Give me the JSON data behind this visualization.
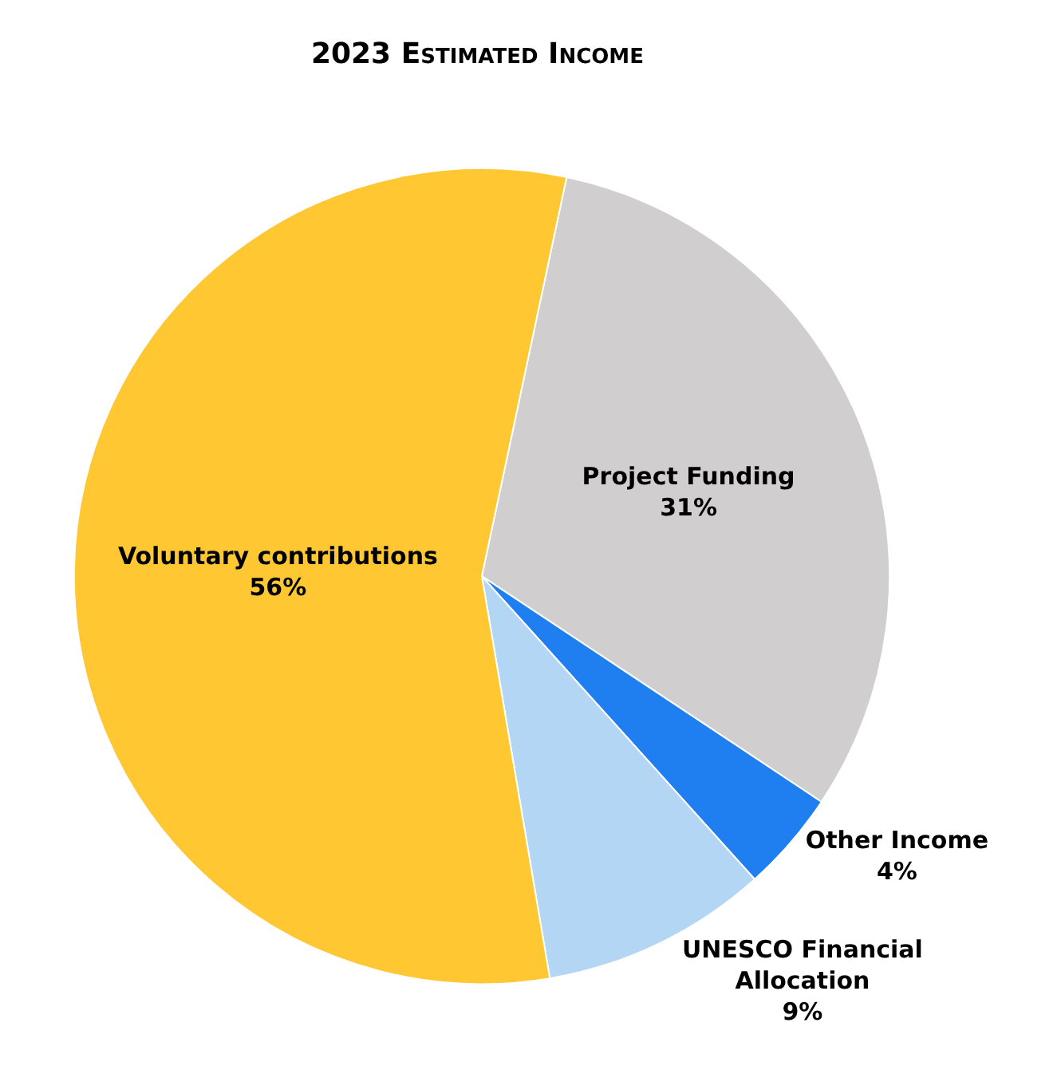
{
  "chart_data": {
    "type": "pie",
    "title": "2023 Estimated Income",
    "categories": [
      "Project Funding",
      "Other Income",
      "UNESCO Financial Allocation",
      "Voluntary contributions"
    ],
    "values": [
      31,
      4,
      9,
      56
    ],
    "value_labels": [
      "31%",
      "4%",
      "9%",
      "56%"
    ],
    "colors": [
      "#d0cece",
      "#1f7ff0",
      "#b4d6f5",
      "#ffc832"
    ],
    "legend": false
  }
}
